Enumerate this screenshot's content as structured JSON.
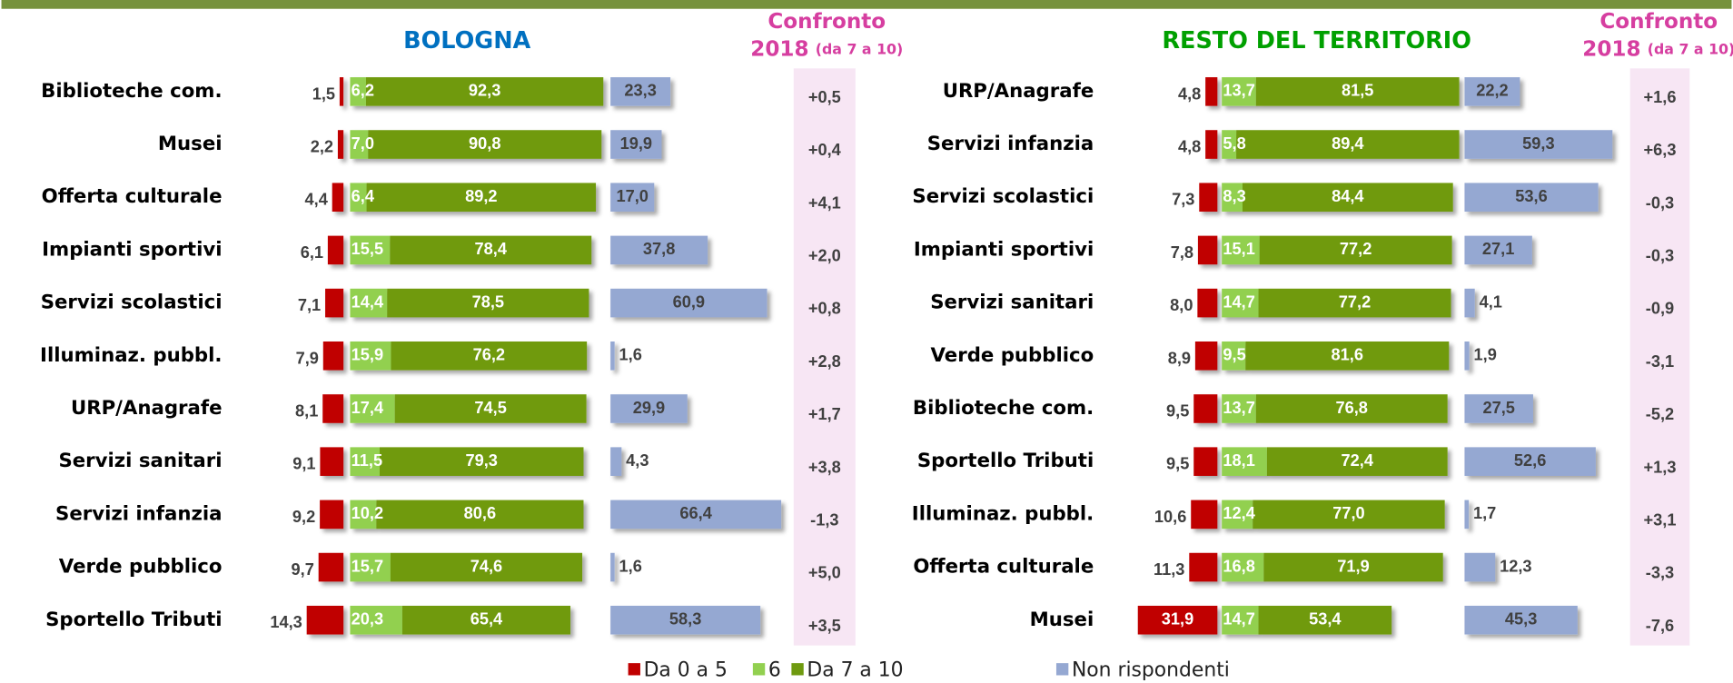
{
  "chart_data": [
    {
      "type": "bar",
      "title": "BOLOGNA",
      "title_color": "#0070c0",
      "compare_title": "Confronto",
      "compare_subtitle": "2018",
      "compare_note": "(da 7 a 10)",
      "categories": [
        "Biblioteche com.",
        "Musei",
        "Offerta culturale",
        "Impianti sportivi",
        "Servizi scolastici",
        "Illuminaz. pubbl.",
        "URP/Anagrafe",
        "Servizi sanitari",
        "Servizi infanzia",
        "Verde pubblico",
        "Sportello Tributi"
      ],
      "series": [
        {
          "name": "Da 0 a 5",
          "color": "#c00000",
          "values": [
            1.5,
            2.2,
            4.4,
            6.1,
            7.1,
            7.9,
            8.1,
            9.1,
            9.2,
            9.7,
            14.3
          ],
          "value_labels": [
            "1,5",
            "2,2",
            "4,4",
            "6,1",
            "7,1",
            "7,9",
            "8,1",
            "9,1",
            "9,2",
            "9,7",
            "14,3"
          ]
        },
        {
          "name": "6",
          "color": "#92d050",
          "values": [
            6.2,
            7.0,
            6.4,
            15.5,
            14.4,
            15.9,
            17.4,
            11.5,
            10.2,
            15.7,
            20.3
          ],
          "value_labels": [
            "6,2",
            "7,0",
            "6,4",
            "15,5",
            "14,4",
            "15,9",
            "17,4",
            "11,5",
            "10,2",
            "15,7",
            "20,3"
          ]
        },
        {
          "name": "Da 7 a 10",
          "color": "#6f9a10",
          "values": [
            92.3,
            90.8,
            89.2,
            78.4,
            78.5,
            76.2,
            74.5,
            79.3,
            80.6,
            74.6,
            65.4
          ],
          "value_labels": [
            "92,3",
            "90,8",
            "89,2",
            "78,4",
            "78,5",
            "76,2",
            "74,5",
            "79,3",
            "80,6",
            "74,6",
            "65,4"
          ]
        },
        {
          "name": "Non rispondenti",
          "color": "#95a8d2",
          "values": [
            23.3,
            19.9,
            17.0,
            37.8,
            60.9,
            1.6,
            29.9,
            4.3,
            66.4,
            1.6,
            58.3
          ],
          "value_labels": [
            "23,3",
            "19,9",
            "17,0",
            "37,8",
            "60,9",
            "1,6",
            "29,9",
            "4,3",
            "66,4",
            "1,6",
            "58,3"
          ]
        }
      ],
      "compare": {
        "values": [
          0.5,
          0.4,
          4.1,
          2.0,
          0.8,
          2.8,
          1.7,
          3.8,
          -1.3,
          5.0,
          3.5
        ],
        "value_labels": [
          "+0,5",
          "+0,4",
          "+4,1",
          "+2,0",
          "+0,8",
          "+2,8",
          "+1,7",
          "+3,8",
          "-1,3",
          "+5,0",
          "+3,5"
        ]
      }
    },
    {
      "type": "bar",
      "title": "RESTO DEL TERRITORIO",
      "title_color": "#00a000",
      "compare_title": "Confronto",
      "compare_subtitle": "2018",
      "compare_note": "(da 7 a 10)",
      "categories": [
        "URP/Anagrafe",
        "Servizi infanzia",
        "Servizi scolastici",
        "Impianti sportivi",
        "Servizi sanitari",
        "Verde pubblico",
        "Biblioteche com.",
        "Sportello Tributi",
        "Illuminaz. pubbl.",
        "Offerta culturale",
        "Musei"
      ],
      "series": [
        {
          "name": "Da 0 a 5",
          "color": "#c00000",
          "values": [
            4.8,
            4.8,
            7.3,
            7.8,
            8.0,
            8.9,
            9.5,
            9.5,
            10.6,
            11.3,
            31.9
          ],
          "value_labels": [
            "4,8",
            "4,8",
            "7,3",
            "7,8",
            "8,0",
            "8,9",
            "9,5",
            "9,5",
            "10,6",
            "11,3",
            "31,9"
          ]
        },
        {
          "name": "6",
          "color": "#92d050",
          "values": [
            13.7,
            5.8,
            8.3,
            15.1,
            14.7,
            9.5,
            13.7,
            18.1,
            12.4,
            16.8,
            14.7
          ],
          "value_labels": [
            "13,7",
            "5,8",
            "8,3",
            "15,1",
            "14,7",
            "9,5",
            "13,7",
            "18,1",
            "12,4",
            "16,8",
            "14,7"
          ]
        },
        {
          "name": "Da 7 a 10",
          "color": "#6f9a10",
          "values": [
            81.5,
            89.4,
            84.4,
            77.2,
            77.2,
            81.6,
            76.8,
            72.4,
            77.0,
            71.9,
            53.4
          ],
          "value_labels": [
            "81,5",
            "89,4",
            "84,4",
            "77,2",
            "77,2",
            "81,6",
            "76,8",
            "72,4",
            "77,0",
            "71,9",
            "53,4"
          ]
        },
        {
          "name": "Non rispondenti",
          "color": "#95a8d2",
          "values": [
            22.2,
            59.3,
            53.6,
            27.1,
            4.1,
            1.9,
            27.5,
            52.6,
            1.7,
            12.3,
            45.3
          ],
          "value_labels": [
            "22,2",
            "59,3",
            "53,6",
            "27,1",
            "4,1",
            "1,9",
            "27,5",
            "52,6",
            "1,7",
            "12,3",
            "45,3"
          ]
        }
      ],
      "compare": {
        "values": [
          1.6,
          6.3,
          -0.3,
          -0.3,
          -0.9,
          -3.1,
          -5.2,
          1.3,
          3.1,
          -3.3,
          -7.6
        ],
        "value_labels": [
          "+1,6",
          "+6,3",
          "-0,3",
          "-0,3",
          "-0,9",
          "-3,1",
          "-5,2",
          "+1,3",
          "+3,1",
          "-3,3",
          "-7,6"
        ]
      }
    }
  ]
}
